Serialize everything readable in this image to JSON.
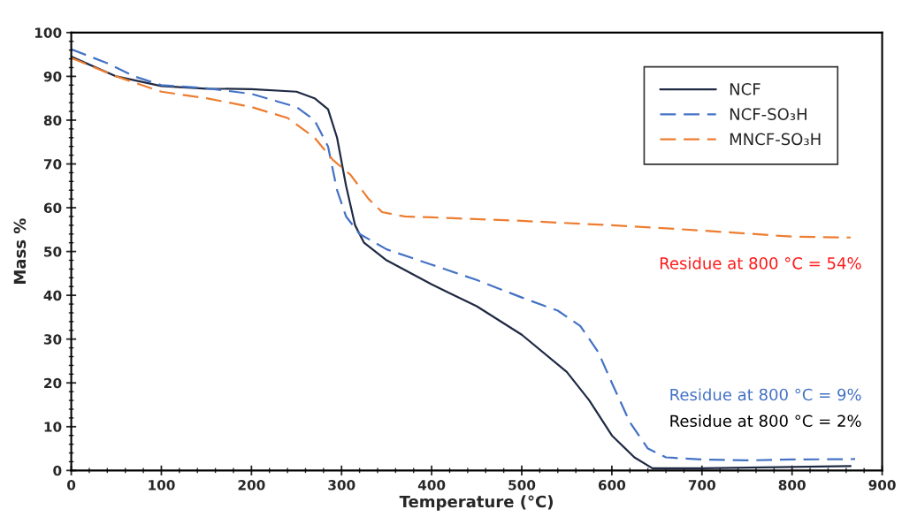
{
  "chart_data": {
    "type": "line",
    "xlabel": "Temperature (°C)",
    "ylabel": "Mass %",
    "xlim": [
      0,
      900
    ],
    "xticks": [
      0,
      100,
      200,
      300,
      400,
      500,
      600,
      700,
      800,
      900
    ],
    "ylim": [
      0,
      100
    ],
    "yticks": [
      0,
      10,
      20,
      30,
      40,
      50,
      60,
      70,
      80,
      90,
      100
    ],
    "grid": false,
    "legend": "top right",
    "series": [
      {
        "name": "NCF",
        "color": "#1f2a44",
        "line_style": "solid",
        "x": [
          0,
          50,
          100,
          150,
          200,
          250,
          270,
          285,
          295,
          305,
          315,
          325,
          350,
          400,
          450,
          500,
          550,
          575,
          600,
          625,
          645,
          700,
          800,
          865
        ],
        "values": [
          94.5,
          90,
          87.8,
          87.2,
          87.1,
          86.5,
          85,
          82.5,
          76,
          65,
          56,
          52,
          48,
          42.5,
          37.5,
          31,
          22.5,
          16,
          8,
          3,
          0.5,
          0.5,
          0.8,
          1
        ]
      },
      {
        "name": "NCF-SO₃H",
        "color": "#4472c4",
        "line_style": "dashed",
        "x": [
          0,
          40,
          70,
          100,
          150,
          200,
          250,
          270,
          285,
          295,
          305,
          320,
          350,
          400,
          450,
          500,
          540,
          565,
          585,
          600,
          620,
          640,
          660,
          700,
          750,
          800,
          870
        ],
        "values": [
          96.2,
          93,
          90,
          88,
          87.3,
          86,
          83,
          80,
          74,
          64,
          58,
          54,
          50.5,
          47,
          43.5,
          39.5,
          36.5,
          33,
          27,
          20,
          11,
          5,
          3,
          2.5,
          2.3,
          2.5,
          2.6
        ]
      },
      {
        "name": "MNCF-SO₃H",
        "color": "#ed7d31",
        "line_style": "dashed",
        "x": [
          0,
          50,
          100,
          150,
          200,
          240,
          270,
          290,
          310,
          330,
          345,
          370,
          400,
          500,
          600,
          700,
          800,
          865
        ],
        "values": [
          94.2,
          90,
          86.5,
          85,
          83,
          80.5,
          76,
          71,
          67.5,
          62,
          59,
          58,
          57.8,
          57,
          56,
          54.8,
          53.4,
          53.2
        ]
      }
    ],
    "annotations": [
      "Residue at 800 °C = 54%",
      "Residue at 800 °C = 9%",
      "Residue at 800 °C = 2%"
    ]
  }
}
